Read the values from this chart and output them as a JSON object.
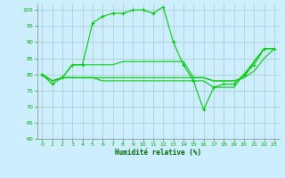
{
  "xlabel": "Humidité relative (%)",
  "bg_color": "#cceeff",
  "grid_color": "#aacccc",
  "line_color": "#00cc00",
  "xlim": [
    -0.5,
    23.5
  ],
  "ylim": [
    60,
    102
  ],
  "yticks": [
    60,
    65,
    70,
    75,
    80,
    85,
    90,
    95,
    100
  ],
  "xticks": [
    0,
    1,
    2,
    3,
    4,
    5,
    6,
    7,
    8,
    9,
    10,
    11,
    12,
    13,
    14,
    15,
    16,
    17,
    18,
    19,
    20,
    21,
    22,
    23
  ],
  "line1": [
    80,
    77,
    79,
    83,
    83,
    96,
    98,
    99,
    99,
    100,
    100,
    99,
    101,
    90,
    83,
    78,
    69,
    76,
    77,
    77,
    80,
    83,
    88,
    88
  ],
  "line2": [
    80,
    78,
    79,
    83,
    83,
    83,
    83,
    83,
    84,
    84,
    84,
    84,
    84,
    84,
    84,
    79,
    79,
    78,
    78,
    78,
    79,
    84,
    88,
    88
  ],
  "line3": [
    80,
    78,
    79,
    79,
    79,
    79,
    79,
    79,
    79,
    79,
    79,
    79,
    79,
    79,
    79,
    79,
    79,
    78,
    78,
    78,
    79,
    81,
    85,
    88
  ],
  "line4": [
    80,
    78,
    79,
    79,
    79,
    79,
    78,
    78,
    78,
    78,
    78,
    78,
    78,
    78,
    78,
    78,
    78,
    76,
    76,
    76,
    80,
    84,
    88,
    88
  ]
}
